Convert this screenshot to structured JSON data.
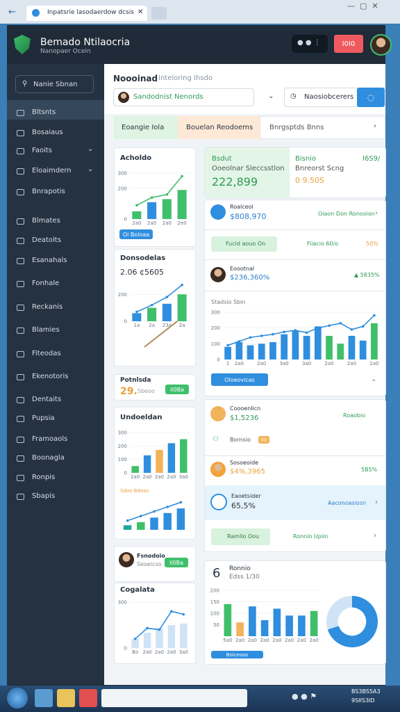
{
  "browser": {
    "tab_title": "Inpatsrie lasodaerdow dcsis"
  },
  "header": {
    "title": "Bemado Ntilaocria",
    "subtitle": "Nanopaer Ocein",
    "badge": "I0I0"
  },
  "sidebar": {
    "search": "Nanie Sbnan",
    "items": [
      "Bltsnts",
      "Bosaiaus",
      "Faoits",
      "Eloaimdern",
      "Bnrapotis",
      "Blmates",
      "Deatolts",
      "Esanahals",
      "Fonhale",
      "Reckanis",
      "Blamies",
      "Fiteodas",
      "Ekenotoris",
      "Dentaits",
      "Pupsia",
      "Framoaols",
      "Boonagla",
      "Ronpis",
      "Sbapis"
    ]
  },
  "toolbar": {
    "title": "Noooinad",
    "subtitle": "Inteloring Ihsdo",
    "select": "Sandodnist Nenords",
    "search": "Naosiobcerers"
  },
  "tabs": [
    "Eoangie Iola",
    "Bouelan Reodoems",
    "Bnrgsptds Bnns"
  ],
  "left_cards": {
    "acholdo": {
      "title": "Acholdo",
      "button": "Oi Boloaa"
    },
    "donsodelas": {
      "title": "Donsodelas",
      "value": "2.06 ¢5605"
    },
    "potnlsda": {
      "title": "Potnlsda",
      "value": "29.",
      "note": "Sbeoo",
      "button": "Ii0Ba"
    },
    "undoeldan": {
      "title": "Undoeldan",
      "note": "Sdoo Bdoso"
    },
    "fsnodoio": {
      "title": "Fsnodoio",
      "note": "Seoeicso",
      "button": "Ii0Ba"
    },
    "cogalata": {
      "title": "Cogalata"
    }
  },
  "right_cards": {
    "summary": {
      "left_title": "Bsdut",
      "left_label": "Ooeolnar Sleccsstlon",
      "left_value": "222,899",
      "right_title": "Bisnio",
      "right_value": "I6S9/",
      "right_label": "Bnreorst Scng",
      "right_amount": "0 9.50S"
    },
    "row1": {
      "title": "Roalceol",
      "value": "$808,970",
      "link": "Oiaon Don Ronooion"
    },
    "row2": {
      "pill": "Fucid aouo On",
      "label": "Fiiacio 60/o",
      "value": "50%"
    },
    "row3": {
      "title": "Eoootnal",
      "value": "$236,360%",
      "change": "▲ 5835%"
    },
    "chart": {
      "title": "Stadsio Sbin",
      "button": "Oloeovicas"
    },
    "row4": {
      "title": "Coooenlicn",
      "value": "$1,5236",
      "right": "Roaobio",
      "sub": "Bornsio",
      "badge": "Ii0"
    },
    "row5": {
      "title": "Sosoeoide",
      "value": "$4%,3965",
      "change": "5B5%"
    },
    "row6": {
      "title": "Eaoetsider",
      "value": "65,5%",
      "link": "Aaconoasiosn"
    },
    "row7": {
      "pill": "Ramllo Oou",
      "link": "Ronnlo Upiin"
    },
    "bottom": {
      "big": "6",
      "title": "Ronnio",
      "sub": "Edss 1/30",
      "button": "Boiceoos"
    }
  },
  "taskbar": {
    "time": "BS3BS5A3",
    "date": "9SIIS3ID"
  },
  "charts": [
    {
      "type": "bar",
      "ylim": [
        0,
        300
      ],
      "yticks": [
        0,
        200,
        300
      ],
      "categories": [
        "2a0",
        "2a0",
        "2a0",
        "2e0"
      ],
      "values": [
        50,
        110,
        130,
        190
      ],
      "colors": [
        "#3fbf6a",
        "#2f8ede",
        "#3fbf6a",
        "#3fbf6a"
      ],
      "line": [
        90,
        140,
        160,
        280
      ],
      "line_color": "#3fbf6a"
    },
    {
      "type": "bar",
      "ylim": [
        0,
        300
      ],
      "yticks": [
        0,
        200
      ],
      "categories": [
        "1a",
        "2a",
        "23a",
        "2a"
      ],
      "values": [
        60,
        100,
        130,
        200
      ],
      "colors": [
        "#2f8ede",
        "#3fbf6a",
        "#2f8ede",
        "#3fbf6a"
      ],
      "line": [
        70,
        120,
        180,
        270
      ],
      "line_color": "#2f8ede"
    },
    {
      "type": "bar",
      "ylim": [
        0,
        300
      ],
      "yticks": [
        0,
        100,
        200,
        300
      ],
      "categories": [
        "2a0",
        "2a0",
        "2a0",
        "2a0",
        "3a0"
      ],
      "values": [
        50,
        130,
        170,
        220,
        250
      ],
      "colors": [
        "#3fbf6a",
        "#2f8ede",
        "#f2b35a",
        "#2f8ede",
        "#3fbf6a"
      ]
    },
    {
      "type": "bar",
      "ylim": [
        0,
        200
      ],
      "values": [
        30,
        50,
        80,
        110,
        140
      ],
      "colors": [
        "#1fa89a",
        "#3fbf6a",
        "#2f8ede",
        "#2f8ede",
        "#2f8ede"
      ],
      "line": [
        60,
        90,
        120,
        150,
        180
      ],
      "line_color": "#2f8ede"
    },
    {
      "type": "bar",
      "ylim": [
        0,
        300
      ],
      "yticks": [
        0,
        300
      ],
      "categories": [
        "Bo",
        "2a0",
        "2a0",
        "2a0",
        "3a0"
      ],
      "values": [
        60,
        100,
        130,
        150,
        160
      ],
      "colors": [
        "#cfe3f6",
        "#cfe3f6",
        "#cfe3f6",
        "#cfe3f6",
        "#cfe3f6"
      ],
      "line": [
        60,
        130,
        120,
        240,
        220
      ],
      "line_color": "#2f8ede"
    },
    {
      "type": "bar",
      "ylim": [
        0,
        300
      ],
      "yticks": [
        0,
        100,
        200,
        300
      ],
      "categories": [
        "1",
        "2a0",
        null,
        "2a0",
        null,
        "3a0",
        null,
        "3a0",
        null,
        "2a0",
        null,
        "2a0",
        null,
        "2a0"
      ],
      "values": [
        80,
        110,
        90,
        100,
        110,
        160,
        180,
        150,
        210,
        150,
        100,
        150,
        120,
        230
      ],
      "colors": [
        "#2f8ede",
        "#2f8ede",
        "#2f8ede",
        "#2f8ede",
        "#2f8ede",
        "#2f8ede",
        "#2f8ede",
        "#2f8ede",
        "#2f8ede",
        "#3fbf6a",
        "#3fbf6a",
        "#2f8ede",
        "#2f8ede",
        "#3fbf6a"
      ],
      "line": [
        90,
        115,
        140,
        150,
        160,
        175,
        185,
        170,
        200,
        215,
        230,
        190,
        210,
        280
      ],
      "line_color": "#2f8ede"
    },
    {
      "type": "bar",
      "ylim": [
        0,
        200
      ],
      "yticks": [
        50,
        100,
        150,
        200
      ],
      "categories": [
        "5a0",
        "2a0",
        "2a0",
        "2a0",
        "2a0",
        "2a0",
        "2a0",
        "2a0"
      ],
      "values": [
        140,
        60,
        130,
        70,
        120,
        90,
        90,
        110
      ],
      "colors": [
        "#3fbf6a",
        "#f2b35a",
        "#2f8ede",
        "#2f8ede",
        "#2f8ede",
        "#2f8ede",
        "#2f8ede",
        "#3fbf6a"
      ]
    },
    {
      "type": "pie",
      "values": [
        70,
        30
      ],
      "colors": [
        "#2f8ede",
        "#cfe3f6"
      ]
    }
  ]
}
